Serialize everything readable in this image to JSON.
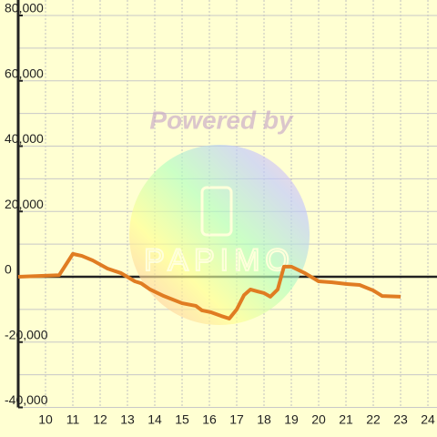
{
  "chart_data": {
    "type": "line",
    "x": [
      9,
      10.5,
      11,
      11.33,
      11.73,
      12.27,
      12.77,
      13.27,
      13.5,
      13.83,
      14.33,
      15,
      15.5,
      15.73,
      16.07,
      16.43,
      16.73,
      17,
      17.27,
      17.5,
      17.77,
      18,
      18.23,
      18.5,
      18.73,
      19,
      19.5,
      20,
      20.5,
      21,
      21.5,
      22,
      22.33,
      23
    ],
    "series": [
      {
        "color": "#e07c22",
        "values": [
          0,
          500,
          7000,
          6400,
          5000,
          2500,
          1100,
          -1400,
          -2000,
          -3900,
          -5900,
          -8100,
          -8900,
          -10300,
          -10900,
          -12000,
          -12800,
          -10000,
          -5600,
          -3900,
          -4500,
          -5000,
          -6100,
          -3900,
          3100,
          3100,
          1100,
          -1400,
          -1700,
          -2200,
          -2500,
          -4200,
          -5900,
          -6100
        ]
      }
    ],
    "xlim": [
      9,
      24.333
    ],
    "ylim": [
      -40000,
      80000
    ],
    "xticks": [
      10,
      11,
      12,
      13,
      14,
      15,
      16,
      17,
      18,
      19,
      20,
      21,
      22,
      23,
      24
    ],
    "yticks": [
      {
        "value": -40000,
        "label": "-40,000"
      },
      {
        "value": -20000,
        "label": "-20,000"
      },
      0,
      {
        "value": 20000,
        "label": "20,000"
      },
      {
        "value": 40000,
        "label": "40,000"
      },
      {
        "value": 60000,
        "label": "60,000"
      },
      {
        "value": 80000,
        "label": "80,000"
      }
    ],
    "y_minor_grid": [
      -30000,
      -10000,
      10000,
      30000,
      50000,
      70000
    ],
    "grid": true,
    "zero_line": true,
    "watermark": {
      "title": "Powered by",
      "logo": "PAPIMO"
    }
  }
}
